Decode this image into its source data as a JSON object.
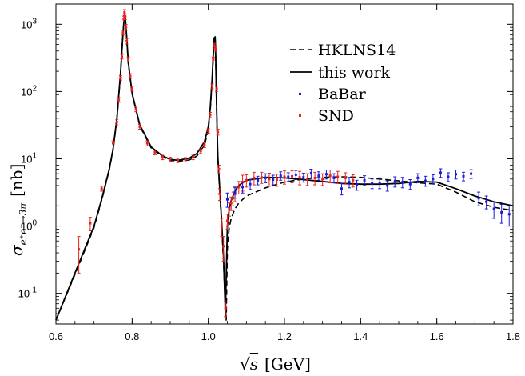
{
  "chart_data": {
    "type": "scatter",
    "xlabel_parts": {
      "sqrt": "√",
      "var": "s",
      "unit": "[GeV]"
    },
    "ylabel_parts": {
      "sigma": "σ",
      "sub": "e⁺e⁻→3π",
      "unit": "[nb]"
    },
    "xlim": [
      0.6,
      1.8
    ],
    "ylim": [
      0.035,
      2000
    ],
    "yscale": "log",
    "grid": false,
    "legend_position": "top-right",
    "x_ticks": [
      0.6,
      0.8,
      1.0,
      1.2,
      1.4,
      1.6,
      1.8
    ],
    "x_tick_labels": [
      "0.6",
      "0.8",
      "1.0",
      "1.2",
      "1.4",
      "1.6",
      "1.8"
    ],
    "y_ticks": [
      {
        "value": 0.1,
        "base": "10",
        "exp": "-1"
      },
      {
        "value": 1,
        "base": "10",
        "exp": "0"
      },
      {
        "value": 10,
        "base": "10",
        "exp": "1"
      },
      {
        "value": 100,
        "base": "10",
        "exp": "2"
      },
      {
        "value": 1000,
        "base": "10",
        "exp": "3"
      }
    ],
    "legend": [
      {
        "label": "HKLNS14",
        "style": "dashed",
        "color": "#000000"
      },
      {
        "label": "this work",
        "style": "solid",
        "color": "#000000"
      },
      {
        "label": "BaBar",
        "style": "points",
        "color": "#1a1adb"
      },
      {
        "label": "SND",
        "style": "points",
        "color": "#e8231e"
      }
    ],
    "series": [
      {
        "name": "this work",
        "style": "solid",
        "color": "#000000",
        "x": [
          0.6,
          0.65,
          0.7,
          0.72,
          0.74,
          0.75,
          0.76,
          0.77,
          0.775,
          0.78,
          0.782,
          0.785,
          0.79,
          0.8,
          0.82,
          0.85,
          0.88,
          0.9,
          0.92,
          0.95,
          0.97,
          0.99,
          1.0,
          1.005,
          1.01,
          1.015,
          1.018,
          1.019,
          1.021,
          1.023,
          1.025,
          1.03,
          1.035,
          1.04,
          1.043,
          1.045,
          1.05,
          1.055,
          1.06,
          1.07,
          1.08,
          1.1,
          1.15,
          1.2,
          1.25,
          1.3,
          1.35,
          1.4,
          1.45,
          1.5,
          1.55,
          1.6,
          1.65,
          1.7,
          1.75,
          1.8
        ],
        "y": [
          0.04,
          0.2,
          1.0,
          2.5,
          7,
          14,
          40,
          200,
          600,
          1450,
          1250,
          750,
          270,
          95,
          32,
          15,
          11,
          9.8,
          9.5,
          10.2,
          12,
          18,
          30,
          55,
          150,
          620,
          650,
          450,
          100,
          30,
          11,
          3.5,
          1.2,
          0.35,
          0.1,
          0.05,
          1.0,
          1.8,
          2.4,
          3.3,
          4.0,
          4.8,
          5.3,
          5.2,
          4.9,
          4.6,
          4.3,
          4.2,
          4.2,
          4.3,
          4.6,
          4.5,
          3.6,
          2.8,
          2.3,
          2.0
        ]
      },
      {
        "name": "HKLNS14",
        "style": "dashed",
        "color": "#000000",
        "x": [
          0.6,
          0.65,
          0.7,
          0.72,
          0.74,
          0.75,
          0.76,
          0.77,
          0.775,
          0.78,
          0.782,
          0.785,
          0.79,
          0.8,
          0.82,
          0.85,
          0.88,
          0.9,
          0.92,
          0.95,
          0.97,
          0.99,
          1.0,
          1.005,
          1.01,
          1.015,
          1.018,
          1.019,
          1.021,
          1.023,
          1.025,
          1.03,
          1.035,
          1.04,
          1.044,
          1.047,
          1.05,
          1.055,
          1.06,
          1.07,
          1.08,
          1.1,
          1.15,
          1.2,
          1.25,
          1.3,
          1.35,
          1.4,
          1.45,
          1.5,
          1.55,
          1.6,
          1.65,
          1.7,
          1.75,
          1.8
        ],
        "y": [
          0.04,
          0.19,
          0.95,
          2.4,
          6.8,
          13.5,
          38,
          190,
          580,
          1400,
          1200,
          720,
          260,
          92,
          31,
          14.5,
          10.7,
          9.5,
          9.2,
          9.6,
          11,
          16,
          27,
          50,
          140,
          580,
          620,
          420,
          95,
          28,
          10,
          3.2,
          1.1,
          0.3,
          0.08,
          0.04,
          0.45,
          0.95,
          1.3,
          1.8,
          2.2,
          2.8,
          3.7,
          4.5,
          5.0,
          5.3,
          5.4,
          5.3,
          5.0,
          4.7,
          4.4,
          4.2,
          3.2,
          2.3,
          1.9,
          1.7
        ]
      },
      {
        "name": "SND",
        "style": "points",
        "color": "#e8231e",
        "x": [
          0.66,
          0.69,
          0.72,
          0.75,
          0.76,
          0.765,
          0.77,
          0.773,
          0.776,
          0.778,
          0.78,
          0.782,
          0.784,
          0.786,
          0.79,
          0.795,
          0.8,
          0.81,
          0.82,
          0.84,
          0.86,
          0.88,
          0.9,
          0.92,
          0.94,
          0.96,
          0.98,
          0.99,
          1.0,
          1.005,
          1.01,
          1.013,
          1.016,
          1.019,
          1.022,
          1.025,
          1.028,
          1.03,
          1.035,
          1.04,
          1.045,
          1.05,
          1.055,
          1.06,
          1.065,
          1.07,
          1.08,
          1.09,
          1.1,
          1.12,
          1.14,
          1.16,
          1.18,
          1.2,
          1.22,
          1.24,
          1.26,
          1.28,
          1.3,
          1.32,
          1.34,
          1.36,
          1.38
        ],
        "y": [
          0.45,
          1.1,
          3.6,
          17,
          35,
          75,
          160,
          330,
          750,
          1200,
          1500,
          1300,
          900,
          560,
          300,
          170,
          110,
          55,
          30,
          17,
          12.5,
          10.5,
          9.8,
          9.5,
          9.7,
          10.5,
          13,
          16,
          26,
          45,
          120,
          300,
          480,
          430,
          110,
          25,
          7,
          3,
          1,
          0.5,
          0.06,
          1.2,
          1.8,
          2.2,
          2.6,
          3.0,
          3.8,
          4.5,
          4.8,
          5.2,
          5.3,
          5.0,
          4.9,
          5.4,
          5.5,
          5.3,
          5.0,
          5.2,
          5.0,
          5.6,
          5.4,
          5.2,
          4.8
        ],
        "err": [
          0.25,
          0.25,
          0.3,
          1.5,
          3,
          6,
          12,
          25,
          60,
          120,
          150,
          130,
          90,
          50,
          25,
          14,
          9,
          5,
          2.5,
          1.4,
          1,
          0.8,
          0.7,
          0.7,
          0.7,
          0.8,
          1,
          1.3,
          2,
          4,
          10,
          25,
          40,
          35,
          10,
          2.5,
          1,
          0.6,
          0.3,
          0.2,
          0.015,
          0.3,
          0.4,
          0.5,
          0.6,
          0.7,
          0.8,
          1.2,
          1.0,
          1.1,
          1.0,
          1.1,
          1.0,
          1.2,
          1.1,
          1.2,
          1.0,
          1.1,
          1.0,
          1.2,
          1.1,
          1.0,
          1.0
        ]
      },
      {
        "name": "BaBar",
        "style": "points",
        "color": "#1a1adb",
        "x": [
          1.05,
          1.07,
          1.09,
          1.11,
          1.13,
          1.15,
          1.17,
          1.19,
          1.21,
          1.23,
          1.25,
          1.27,
          1.29,
          1.31,
          1.33,
          1.35,
          1.37,
          1.39,
          1.41,
          1.43,
          1.45,
          1.47,
          1.49,
          1.51,
          1.53,
          1.55,
          1.57,
          1.59,
          1.61,
          1.63,
          1.65,
          1.67,
          1.69,
          1.71,
          1.73,
          1.75,
          1.77,
          1.79
        ],
        "y": [
          2.5,
          3.2,
          3.8,
          4.2,
          4.8,
          5.2,
          4.9,
          5.6,
          5.4,
          5.8,
          5.3,
          6.1,
          5.6,
          5.9,
          5.2,
          3.6,
          4.5,
          4.1,
          4.8,
          4.3,
          4.4,
          4.0,
          4.6,
          4.5,
          4.2,
          5.2,
          4.7,
          5.0,
          6.2,
          5.4,
          5.9,
          5.5,
          6.0,
          2.6,
          2.3,
          1.8,
          1.6,
          1.5
        ],
        "err": [
          0.6,
          0.6,
          0.7,
          0.7,
          0.7,
          0.8,
          0.8,
          0.8,
          0.8,
          0.9,
          0.8,
          0.9,
          0.8,
          0.9,
          0.8,
          0.7,
          0.8,
          0.7,
          0.8,
          0.7,
          0.8,
          0.7,
          0.8,
          0.8,
          0.7,
          0.8,
          0.8,
          0.8,
          0.9,
          0.8,
          0.9,
          0.8,
          0.9,
          0.6,
          0.5,
          0.5,
          0.5,
          0.5
        ]
      }
    ]
  }
}
